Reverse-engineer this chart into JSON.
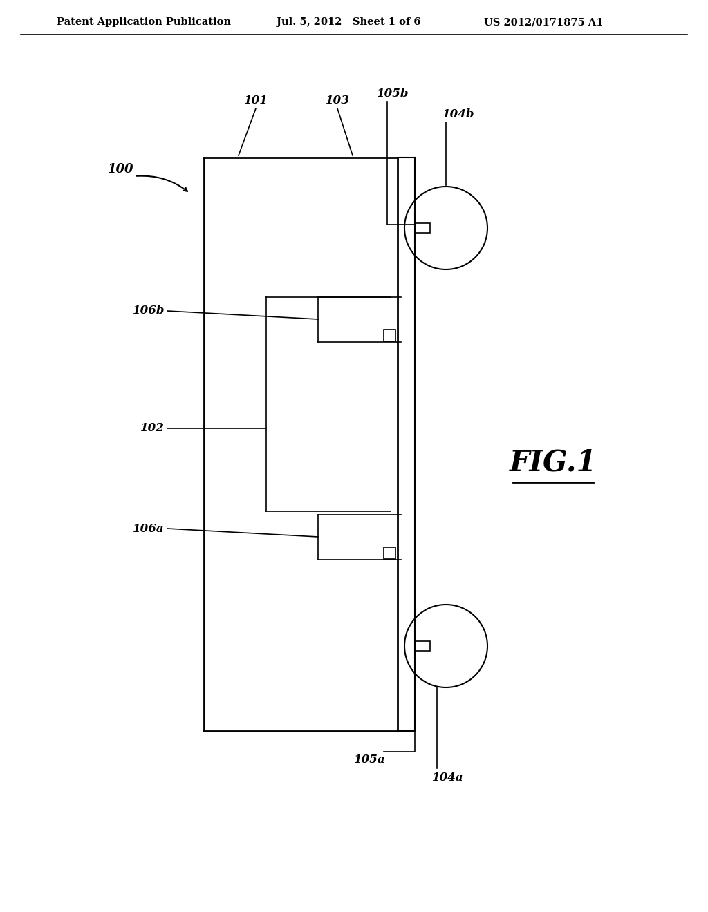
{
  "bg_color": "#ffffff",
  "line_color": "#000000",
  "header_left": "Patent Application Publication",
  "header_mid": "Jul. 5, 2012   Sheet 1 of 6",
  "header_right": "US 2012/0171875 A1",
  "fig_label": "FIG.1",
  "label_100": "100",
  "label_101": "101",
  "label_102": "102",
  "label_103": "103",
  "label_104a": "104a",
  "label_104b": "104b",
  "label_105a": "105a",
  "label_105b": "105b",
  "label_106a": "106a",
  "label_106b": "106b"
}
